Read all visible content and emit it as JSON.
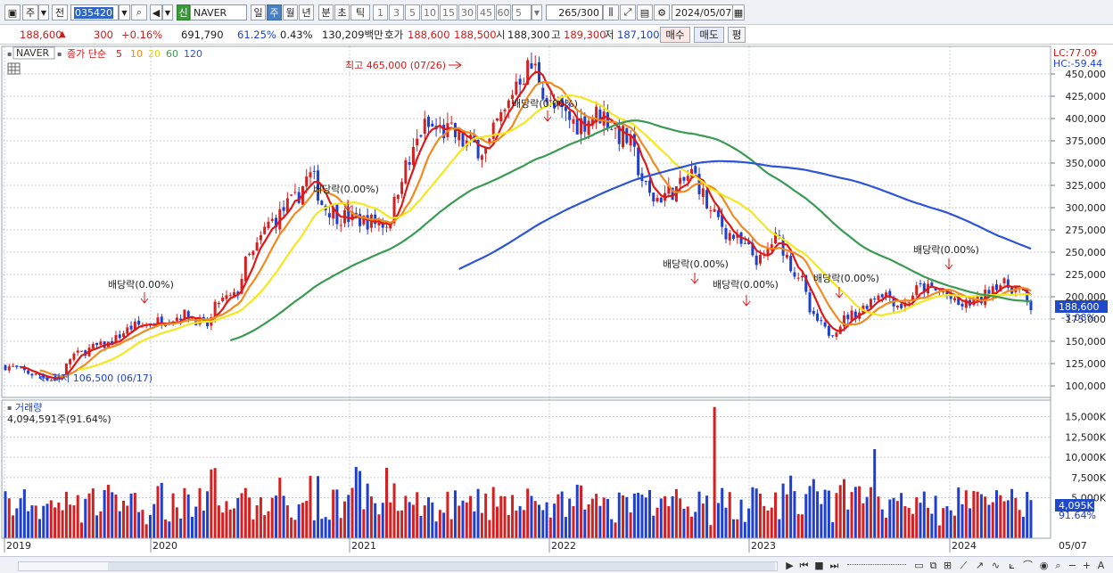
{
  "toolbar": {
    "type_btn": "주",
    "prev_btn": "전",
    "code": "035420",
    "badge": "신",
    "stock_name": "NAVER",
    "periods": [
      "일",
      "주",
      "월",
      "년",
      "분",
      "초",
      "틱"
    ],
    "active_period": "주",
    "numbers": [
      "1",
      "3",
      "5",
      "10",
      "15",
      "30",
      "45",
      "60"
    ],
    "num_select": "5",
    "count": "265",
    "count_total": "/300",
    "date": "2024/05/07"
  },
  "quote": {
    "price": "188,600",
    "change": "300",
    "change_pct": "+0.16%",
    "volume": "691,790",
    "vol_ratio": "61.25%",
    "turnover": "0.43%",
    "amount": "130,209백만",
    "bid_label": "호가",
    "bid1": "188,600",
    "bid2": "188,500",
    "open_label": "시",
    "open": "188,300",
    "high_label": "고",
    "high": "189,300",
    "low_label": "저",
    "low": "187,100",
    "buy": "매수",
    "sell": "매도",
    "eval": "평"
  },
  "legend": {
    "name": "NAVER",
    "label": "종가 단순",
    "ma": [
      "5",
      "10",
      "20",
      "60",
      "120"
    ]
  },
  "price_axis": [
    "450,000",
    "425,000",
    "400,000",
    "375,000",
    "350,000",
    "325,000",
    "300,000",
    "275,000",
    "250,000",
    "225,000",
    "200,000",
    "175,000",
    "150,000",
    "125,000",
    "100,000"
  ],
  "lc": "LC:77.09",
  "hc": "HC:-59.44",
  "price_tag": "188,600",
  "price_tag_pct": "-3.08%",
  "annotations": {
    "high": "최고 465,000 (07/26)",
    "low": "최저 106,500 (06/17)",
    "div": "배당락(0.00%)"
  },
  "volume": {
    "title": "거래량",
    "value": "4,094,591주(91.64%)",
    "axis": [
      "15,000K",
      "12,500K",
      "10,000K",
      "7,500K",
      "5,000K"
    ],
    "tag": "4,095K",
    "tag_pct": "91.64%"
  },
  "x_axis": [
    "2019",
    "2020",
    "2021",
    "2022",
    "2023",
    "2024",
    "05/07"
  ],
  "colors": {
    "up": "#d42020",
    "down": "#1f3fd0",
    "ma5": "#e01818",
    "ma10": "#f08a1e",
    "ma20": "#f5e71e",
    "ma60": "#3a9a52",
    "ma120": "#2e54d6"
  },
  "chart_data": {
    "type": "candlestick",
    "title": "NAVER",
    "period": "weekly",
    "moving_averages": [
      5,
      10,
      20,
      60,
      120
    ],
    "ylim": [
      100000,
      465000
    ],
    "x": [
      "2019",
      "2020",
      "2021",
      "2022",
      "2023",
      "2024"
    ],
    "highest": {
      "value": 465000,
      "date": "07/26"
    },
    "lowest": {
      "value": 106500,
      "date": "06/17"
    },
    "last_close": 188600,
    "last_volume": 4094591
  }
}
